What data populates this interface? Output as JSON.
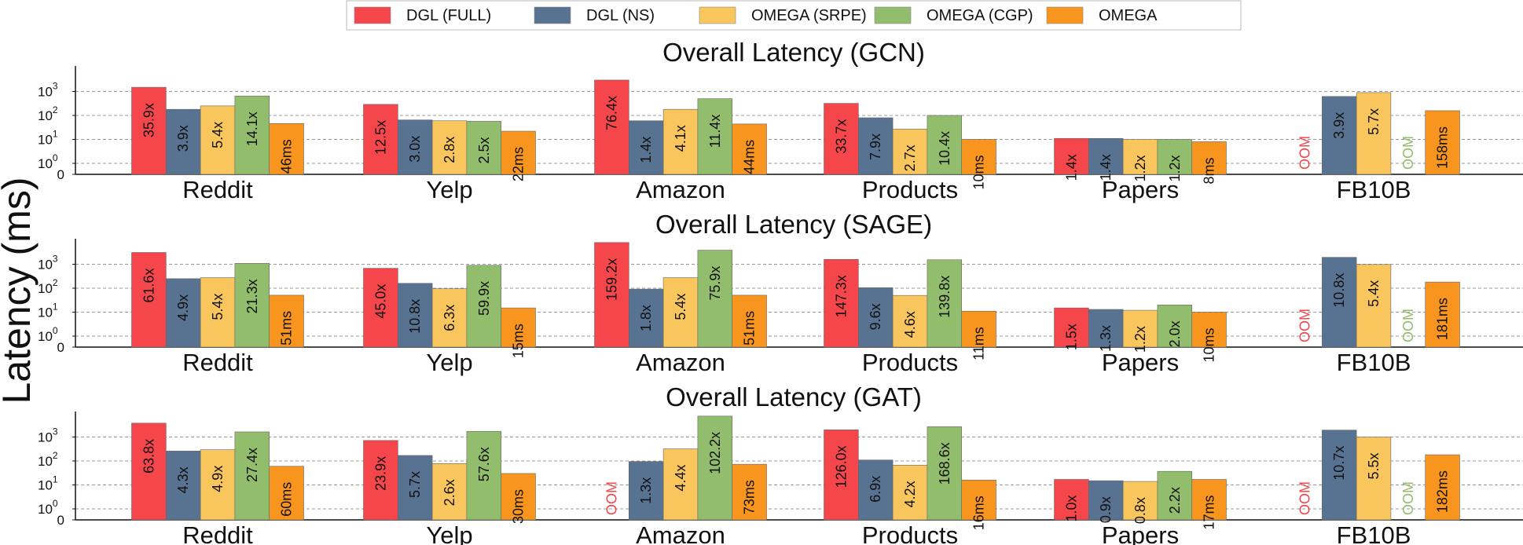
{
  "ylabel": "Latency (ms)",
  "legend": [
    {
      "name": "DGL (FULL)",
      "color": "#f5464b"
    },
    {
      "name": "DGL (NS)",
      "color": "#587291"
    },
    {
      "name": "OMEGA (SRPE)",
      "color": "#f9c65d"
    },
    {
      "name": "OMEGA (CGP)",
      "color": "#92bd6c"
    },
    {
      "name": "OMEGA",
      "color": "#f7951f"
    }
  ],
  "chart_data": [
    {
      "type": "bar",
      "title": "Overall Latency (GCN)",
      "yscale": "symlog",
      "yticks": [
        "0",
        "10",
        "10",
        "10",
        "10"
      ],
      "ytick_exponents": [
        "",
        "0",
        "1",
        "2",
        "3"
      ],
      "categories": [
        "Reddit",
        "Yelp",
        "Amazon",
        "Products",
        "Papers",
        "FB10B"
      ],
      "series": [
        {
          "name": "DGL (FULL)",
          "values": [
            1500,
            290,
            3000,
            320,
            11,
            null
          ],
          "labels": [
            "35.9x",
            "12.5x",
            "76.4x",
            "33.7x",
            "1.4x",
            "OOM"
          ]
        },
        {
          "name": "DGL (NS)",
          "values": [
            180,
            65,
            60,
            80,
            11,
            620
          ],
          "labels": [
            "3.9x",
            "3.0x",
            "1.4x",
            "7.9x",
            "1.4x",
            "3.9x"
          ]
        },
        {
          "name": "OMEGA (SRPE)",
          "values": [
            250,
            60,
            180,
            27,
            10,
            900
          ],
          "labels": [
            "5.4x",
            "2.8x",
            "4.1x",
            "2.7x",
            "1.2x",
            "5.7x"
          ]
        },
        {
          "name": "OMEGA (CGP)",
          "values": [
            650,
            57,
            500,
            100,
            10,
            null
          ],
          "labels": [
            "14.1x",
            "2.5x",
            "11.4x",
            "10.4x",
            "1.2x",
            "OOM"
          ]
        },
        {
          "name": "OMEGA",
          "values": [
            46,
            22,
            44,
            10,
            8,
            158
          ],
          "labels": [
            "46ms",
            "22ms",
            "44ms",
            "10ms",
            "8ms",
            "158ms"
          ]
        }
      ]
    },
    {
      "type": "bar",
      "title": "Overall Latency (SAGE)",
      "yscale": "symlog",
      "yticks": [
        "0",
        "10",
        "10",
        "10",
        "10"
      ],
      "ytick_exponents": [
        "",
        "0",
        "1",
        "2",
        "3"
      ],
      "categories": [
        "Reddit",
        "Yelp",
        "Amazon",
        "Products",
        "Papers",
        "FB10B"
      ],
      "series": [
        {
          "name": "DGL (FULL)",
          "values": [
            3100,
            680,
            8100,
            1600,
            15,
            null
          ],
          "labels": [
            "61.6x",
            "45.0x",
            "159.2x",
            "147.3x",
            "1.5x",
            "OOM"
          ]
        },
        {
          "name": "DGL (NS)",
          "values": [
            250,
            160,
            92,
            105,
            13,
            1950
          ],
          "labels": [
            "4.9x",
            "10.8x",
            "1.8x",
            "9.6x",
            "1.3x",
            "10.8x"
          ]
        },
        {
          "name": "OMEGA (SRPE)",
          "values": [
            275,
            95,
            275,
            50,
            12,
            980
          ],
          "labels": [
            "5.4x",
            "6.3x",
            "5.4x",
            "4.6x",
            "1.2x",
            "5.4x"
          ]
        },
        {
          "name": "OMEGA (CGP)",
          "values": [
            1090,
            900,
            3870,
            1540,
            20,
            null
          ],
          "labels": [
            "21.3x",
            "59.9x",
            "75.9x",
            "139.8x",
            "2.0x",
            "OOM"
          ]
        },
        {
          "name": "OMEGA",
          "values": [
            51,
            15,
            51,
            11,
            10,
            181
          ],
          "labels": [
            "51ms",
            "15ms",
            "51ms",
            "11ms",
            "10ms",
            "181ms"
          ]
        }
      ]
    },
    {
      "type": "bar",
      "title": "Overall Latency (GAT)",
      "yscale": "symlog",
      "yticks": [
        "0",
        "10",
        "10",
        "10",
        "10"
      ],
      "ytick_exponents": [
        "",
        "0",
        "1",
        "2",
        "3"
      ],
      "categories": [
        "Reddit",
        "Yelp",
        "Amazon",
        "Products",
        "Papers",
        "FB10B"
      ],
      "series": [
        {
          "name": "DGL (FULL)",
          "values": [
            3800,
            720,
            null,
            2000,
            17,
            null
          ],
          "labels": [
            "63.8x",
            "23.9x",
            "OOM",
            "126.0x",
            "1.0x",
            "OOM"
          ]
        },
        {
          "name": "DGL (NS)",
          "values": [
            260,
            170,
            95,
            110,
            15,
            1950
          ],
          "labels": [
            "4.3x",
            "5.7x",
            "1.3x",
            "6.9x",
            "0.9x",
            "10.7x"
          ]
        },
        {
          "name": "OMEGA (SRPE)",
          "values": [
            295,
            78,
            320,
            67,
            14,
            1000
          ],
          "labels": [
            "4.9x",
            "2.6x",
            "4.4x",
            "4.2x",
            "0.8x",
            "5.5x"
          ]
        },
        {
          "name": "OMEGA (CGP)",
          "values": [
            1640,
            1730,
            7460,
            2700,
            37,
            null
          ],
          "labels": [
            "27.4x",
            "57.6x",
            "102.2x",
            "168.6x",
            "2.2x",
            "OOM"
          ]
        },
        {
          "name": "OMEGA",
          "values": [
            60,
            30,
            73,
            16,
            17,
            182
          ],
          "labels": [
            "60ms",
            "30ms",
            "73ms",
            "16ms",
            "17ms",
            "182ms"
          ]
        }
      ]
    }
  ]
}
